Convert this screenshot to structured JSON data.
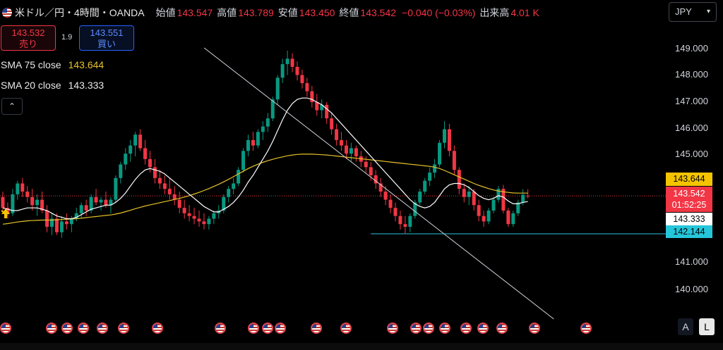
{
  "legend": {
    "flag_icon": "us-flag-icon",
    "symbol_title": "米ドル／円・4時間・OANDA",
    "open_label": "始値",
    "open_value": "143.547",
    "high_label": "高値",
    "high_value": "143.789",
    "low_label": "安値",
    "low_value": "143.450",
    "close_label": "終値",
    "close_value": "143.542",
    "change_text": "−0.040 (−0.03%)",
    "volume_label": "出来高",
    "volume_value": "4.01 K"
  },
  "trade": {
    "sell_price": "143.532",
    "sell_label": "売り",
    "spread": "1.9",
    "buy_price": "143.551",
    "buy_label": "買い"
  },
  "indicators": {
    "sma75_label": "SMA 75 close",
    "sma75_value": "143.644",
    "sma75_color": "#e6c229",
    "sma20_label": "SMA 20 close",
    "sma20_value": "143.333",
    "sma20_color": "#ffffff"
  },
  "controls": {
    "collapse_glyph": "⌃",
    "currency": "JPY",
    "auto_label": "A",
    "log_label": "L"
  },
  "price_tags": {
    "sma75": "143.644",
    "last_price": "143.542",
    "countdown": "01:52:25",
    "sma20": "143.333",
    "support": "142.144"
  },
  "colors": {
    "up": "#089981",
    "down": "#f23645",
    "sma75": "#e6c229",
    "sma20": "#ffffff",
    "support_line": "#26c6da",
    "trendline": "#d1d4dc"
  },
  "chart_data": {
    "type": "candlestick",
    "y_ticks": [
      "149.000",
      "148.000",
      "147.000",
      "146.000",
      "145.000",
      "141.000",
      "140.000"
    ],
    "ylim": [
      139.4,
      150.8
    ],
    "ohlc": [
      [
        143.5,
        143.7,
        142.9,
        143.1
      ],
      [
        143.1,
        143.3,
        142.7,
        142.9
      ],
      [
        142.9,
        143.8,
        142.8,
        143.6
      ],
      [
        143.6,
        144.1,
        143.4,
        144.0
      ],
      [
        144.0,
        144.2,
        143.5,
        143.7
      ],
      [
        143.7,
        143.9,
        143.3,
        143.5
      ],
      [
        143.5,
        143.8,
        143.0,
        143.2
      ],
      [
        143.2,
        143.6,
        142.8,
        143.4
      ],
      [
        143.4,
        143.7,
        142.9,
        143.0
      ],
      [
        143.0,
        143.2,
        142.2,
        142.4
      ],
      [
        142.4,
        142.9,
        142.1,
        142.7
      ],
      [
        142.7,
        142.9,
        142.1,
        142.2
      ],
      [
        142.2,
        142.8,
        142.0,
        142.6
      ],
      [
        142.6,
        142.9,
        142.3,
        142.5
      ],
      [
        142.5,
        142.8,
        142.2,
        142.7
      ],
      [
        142.7,
        143.1,
        142.6,
        142.9
      ],
      [
        142.9,
        143.3,
        142.7,
        143.2
      ],
      [
        143.2,
        143.4,
        142.8,
        143.0
      ],
      [
        143.0,
        143.6,
        142.9,
        143.5
      ],
      [
        143.5,
        143.8,
        143.2,
        143.3
      ],
      [
        143.3,
        143.5,
        143.0,
        143.4
      ],
      [
        143.4,
        143.7,
        143.1,
        143.2
      ],
      [
        143.2,
        143.5,
        142.9,
        143.4
      ],
      [
        143.4,
        144.3,
        143.3,
        144.2
      ],
      [
        144.2,
        144.8,
        144.0,
        144.7
      ],
      [
        144.7,
        145.3,
        144.5,
        145.1
      ],
      [
        145.1,
        145.6,
        144.8,
        145.4
      ],
      [
        145.4,
        145.9,
        145.0,
        145.8
      ],
      [
        145.8,
        146.0,
        145.2,
        145.3
      ],
      [
        145.3,
        145.6,
        144.7,
        144.9
      ],
      [
        144.9,
        145.2,
        144.4,
        144.6
      ],
      [
        144.6,
        144.9,
        144.0,
        144.2
      ],
      [
        144.2,
        144.5,
        143.8,
        144.0
      ],
      [
        144.0,
        144.3,
        143.6,
        143.8
      ],
      [
        143.8,
        144.2,
        143.4,
        143.6
      ],
      [
        143.6,
        143.9,
        143.2,
        143.4
      ],
      [
        143.4,
        143.7,
        142.9,
        143.1
      ],
      [
        143.1,
        143.4,
        142.7,
        142.9
      ],
      [
        142.9,
        143.2,
        142.6,
        142.8
      ],
      [
        142.8,
        143.1,
        142.5,
        142.7
      ],
      [
        142.7,
        143.0,
        142.4,
        142.6
      ],
      [
        142.6,
        142.9,
        142.3,
        142.5
      ],
      [
        142.5,
        142.8,
        142.3,
        142.7
      ],
      [
        142.7,
        143.0,
        142.5,
        142.9
      ],
      [
        142.9,
        143.2,
        142.7,
        143.0
      ],
      [
        143.0,
        143.6,
        142.9,
        143.5
      ],
      [
        143.5,
        143.9,
        143.3,
        143.8
      ],
      [
        143.8,
        144.2,
        143.6,
        144.0
      ],
      [
        144.0,
        144.6,
        143.9,
        144.5
      ],
      [
        144.5,
        145.3,
        144.4,
        145.2
      ],
      [
        145.2,
        145.8,
        145.0,
        145.6
      ],
      [
        145.6,
        145.9,
        145.2,
        145.4
      ],
      [
        145.4,
        146.0,
        145.3,
        145.9
      ],
      [
        145.9,
        146.3,
        145.6,
        146.1
      ],
      [
        146.1,
        146.6,
        145.9,
        146.4
      ],
      [
        146.4,
        147.2,
        146.3,
        147.1
      ],
      [
        147.1,
        148.0,
        146.9,
        147.9
      ],
      [
        147.9,
        148.6,
        147.7,
        148.4
      ],
      [
        148.4,
        148.9,
        148.0,
        148.6
      ],
      [
        148.6,
        148.8,
        148.1,
        148.3
      ],
      [
        148.3,
        148.5,
        147.8,
        148.0
      ],
      [
        148.0,
        148.2,
        147.5,
        147.7
      ],
      [
        147.7,
        147.9,
        147.2,
        147.4
      ],
      [
        147.4,
        147.6,
        146.8,
        147.0
      ],
      [
        147.0,
        147.3,
        146.5,
        146.7
      ],
      [
        146.7,
        147.1,
        146.4,
        146.9
      ],
      [
        146.9,
        147.0,
        146.2,
        146.4
      ],
      [
        146.4,
        146.6,
        145.8,
        146.0
      ],
      [
        146.0,
        146.2,
        145.4,
        145.6
      ],
      [
        145.6,
        145.9,
        145.2,
        145.4
      ],
      [
        145.4,
        145.6,
        144.9,
        145.1
      ],
      [
        145.1,
        145.5,
        144.8,
        145.3
      ],
      [
        145.3,
        145.4,
        144.8,
        145.0
      ],
      [
        145.0,
        145.2,
        144.6,
        144.8
      ],
      [
        144.8,
        145.0,
        144.4,
        144.6
      ],
      [
        144.6,
        144.8,
        144.1,
        144.3
      ],
      [
        144.3,
        144.5,
        143.8,
        144.0
      ],
      [
        144.0,
        144.2,
        143.5,
        143.7
      ],
      [
        143.7,
        143.9,
        143.2,
        143.4
      ],
      [
        143.4,
        143.6,
        142.9,
        143.1
      ],
      [
        143.1,
        143.3,
        142.6,
        142.8
      ],
      [
        142.8,
        143.0,
        142.3,
        142.5
      ],
      [
        142.5,
        142.8,
        142.14,
        142.4
      ],
      [
        142.4,
        142.9,
        142.2,
        142.8
      ],
      [
        142.8,
        143.4,
        142.7,
        143.3
      ],
      [
        143.3,
        143.8,
        143.2,
        143.7
      ],
      [
        143.7,
        144.2,
        143.6,
        144.1
      ],
      [
        144.1,
        144.6,
        143.9,
        144.4
      ],
      [
        144.4,
        144.9,
        144.2,
        144.7
      ],
      [
        144.7,
        145.6,
        144.6,
        145.5
      ],
      [
        145.5,
        146.3,
        145.3,
        146.0
      ],
      [
        146.0,
        146.2,
        145.0,
        145.2
      ],
      [
        145.2,
        145.4,
        144.3,
        144.5
      ],
      [
        144.5,
        144.6,
        143.6,
        143.8
      ],
      [
        143.8,
        144.0,
        143.3,
        143.5
      ],
      [
        143.5,
        143.9,
        143.2,
        143.7
      ],
      [
        143.7,
        143.8,
        143.0,
        143.2
      ],
      [
        143.2,
        143.4,
        142.6,
        142.8
      ],
      [
        142.8,
        143.0,
        142.4,
        142.6
      ],
      [
        142.6,
        143.1,
        142.5,
        143.0
      ],
      [
        143.0,
        143.5,
        142.9,
        143.4
      ],
      [
        143.4,
        143.9,
        143.3,
        143.8
      ],
      [
        143.8,
        143.95,
        142.9,
        143.0
      ],
      [
        143.0,
        143.1,
        142.4,
        142.5
      ],
      [
        142.5,
        143.0,
        142.4,
        142.9
      ],
      [
        142.9,
        143.4,
        142.8,
        143.3
      ],
      [
        143.3,
        143.79,
        143.2,
        143.58
      ],
      [
        143.547,
        143.789,
        143.45,
        143.542
      ]
    ],
    "sma20": [
      143.1,
      143.05,
      143.0,
      143.0,
      143.05,
      143.1,
      143.1,
      143.1,
      143.05,
      143.0,
      142.9,
      142.8,
      142.75,
      142.7,
      142.7,
      142.75,
      142.85,
      142.95,
      143.05,
      143.1,
      143.15,
      143.2,
      143.2,
      143.3,
      143.45,
      143.65,
      143.9,
      144.15,
      144.35,
      144.5,
      144.55,
      144.5,
      144.45,
      144.35,
      144.2,
      144.05,
      143.9,
      143.75,
      143.6,
      143.45,
      143.3,
      143.15,
      143.05,
      142.95,
      142.95,
      143.05,
      143.15,
      143.3,
      143.5,
      143.75,
      144.05,
      144.3,
      144.6,
      144.9,
      145.2,
      145.55,
      145.95,
      146.35,
      146.7,
      146.95,
      147.1,
      147.15,
      147.15,
      147.1,
      147.0,
      146.9,
      146.75,
      146.6,
      146.4,
      146.2,
      146.0,
      145.8,
      145.6,
      145.4,
      145.2,
      145.0,
      144.8,
      144.6,
      144.4,
      144.2,
      144.0,
      143.8,
      143.6,
      143.4,
      143.25,
      143.15,
      143.1,
      143.15,
      143.3,
      143.55,
      143.8,
      143.95,
      144.0,
      144.0,
      143.95,
      143.85,
      143.7,
      143.55,
      143.45,
      143.4,
      143.45,
      143.55,
      143.5,
      143.35,
      143.25,
      143.25,
      143.3,
      143.333
    ],
    "sma75": [
      142.5,
      142.52,
      142.55,
      142.58,
      142.6,
      142.62,
      142.63,
      142.64,
      142.65,
      142.65,
      142.65,
      142.66,
      142.67,
      142.68,
      142.69,
      142.7,
      142.72,
      142.74,
      142.76,
      142.78,
      142.8,
      142.82,
      142.84,
      142.87,
      142.91,
      142.96,
      143.01,
      143.07,
      143.12,
      143.17,
      143.21,
      143.25,
      143.29,
      143.33,
      143.37,
      143.41,
      143.45,
      143.5,
      143.55,
      143.61,
      143.67,
      143.74,
      143.81,
      143.89,
      143.97,
      144.06,
      144.15,
      144.25,
      144.35,
      144.45,
      144.55,
      144.63,
      144.71,
      144.78,
      144.84,
      144.89,
      144.94,
      144.98,
      145.02,
      145.05,
      145.07,
      145.08,
      145.08,
      145.08,
      145.07,
      145.06,
      145.05,
      145.03,
      145.01,
      144.99,
      144.97,
      144.95,
      144.93,
      144.91,
      144.89,
      144.87,
      144.85,
      144.83,
      144.81,
      144.79,
      144.77,
      144.75,
      144.73,
      144.71,
      144.69,
      144.67,
      144.65,
      144.63,
      144.6,
      144.55,
      144.48,
      144.4,
      144.32,
      144.24,
      144.16,
      144.08,
      144.0,
      143.93,
      143.87,
      143.81,
      143.76,
      143.72,
      143.69,
      143.67,
      143.65,
      143.645,
      143.644,
      143.644
    ],
    "support_level": 142.144,
    "trendline": [
      [
        149.0,
        0.306
      ],
      [
        139.0,
        0.83
      ]
    ],
    "event_icons": "us-flag"
  }
}
